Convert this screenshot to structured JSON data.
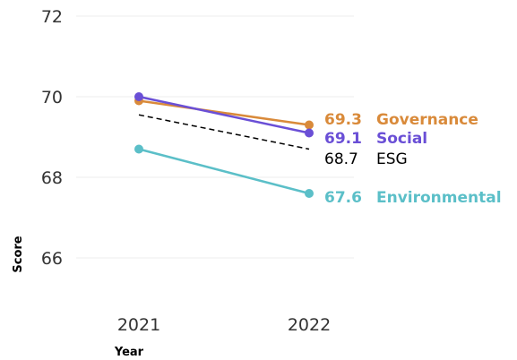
{
  "chart_data": {
    "type": "line",
    "title": "",
    "xlabel": "Year",
    "ylabel": "Score",
    "x": [
      "2021",
      "2022"
    ],
    "ylim": [
      65,
      72
    ],
    "yticks": [
      "72",
      "70",
      "68",
      "66"
    ],
    "grid": true,
    "series": [
      {
        "name": "Governance",
        "values": [
          69.9,
          69.3
        ],
        "label": "69.3",
        "color": "#d98a3a",
        "style": "solid"
      },
      {
        "name": "Social",
        "values": [
          70.0,
          69.1
        ],
        "label": "69.1",
        "color": "#6a4fd6",
        "style": "solid"
      },
      {
        "name": "ESG",
        "values": [
          69.55,
          68.7
        ],
        "label": "68.7",
        "color": "#000000",
        "style": "dashed"
      },
      {
        "name": "Environmental",
        "values": [
          68.7,
          67.6
        ],
        "label": "67.6",
        "color": "#5bbfc8",
        "style": "solid"
      }
    ]
  }
}
